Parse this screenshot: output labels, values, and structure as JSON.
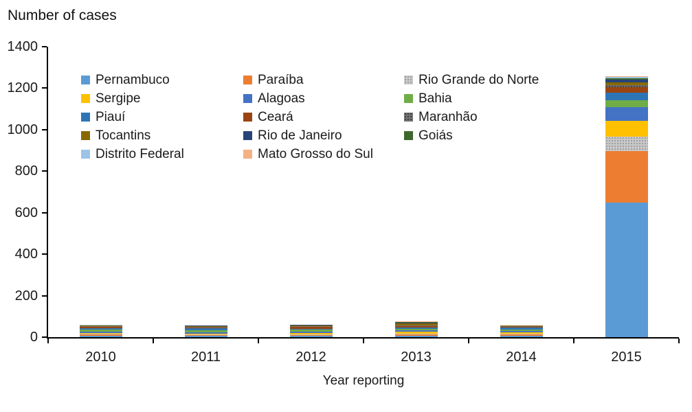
{
  "chart_data": {
    "type": "bar",
    "stacked": true,
    "title": "Number of cases",
    "xlabel": "Year reporting",
    "ylabel": "Number of cases",
    "categories": [
      "2010",
      "2011",
      "2012",
      "2013",
      "2014",
      "2015"
    ],
    "ylim": [
      0,
      1400
    ],
    "yticks": [
      0,
      200,
      400,
      600,
      800,
      1000,
      1200,
      1400
    ],
    "grid": false,
    "legend_position": "inside top-left, 3 columns",
    "axis_color": "#000000",
    "series": [
      {
        "name": "Pernambuco",
        "color": "#5B9BD5",
        "pattern": "solid",
        "values": [
          6,
          5,
          5,
          6,
          7,
          650
        ]
      },
      {
        "name": "Paraíba",
        "color": "#ED7D31",
        "pattern": "solid",
        "values": [
          6,
          4,
          5,
          6,
          5,
          248
        ]
      },
      {
        "name": "Rio Grande do Norte",
        "color": "#C9C9C9",
        "pattern": "dots",
        "dot_color": "#9C9C9C",
        "values": [
          4,
          4,
          4,
          6,
          5,
          70
        ]
      },
      {
        "name": "Sergipe",
        "color": "#FFC000",
        "pattern": "solid",
        "values": [
          5,
          4,
          6,
          7,
          6,
          74
        ]
      },
      {
        "name": "Alagoas",
        "color": "#4472C4",
        "pattern": "solid",
        "values": [
          7,
          6,
          6,
          8,
          7,
          66
        ]
      },
      {
        "name": "Bahia",
        "color": "#70AD47",
        "pattern": "solid",
        "values": [
          8,
          9,
          10,
          8,
          7,
          33
        ]
      },
      {
        "name": "Piauí",
        "color": "#2E75B6",
        "pattern": "solid",
        "values": [
          8,
          12,
          5,
          6,
          8,
          39
        ]
      },
      {
        "name": "Ceará",
        "color": "#9A4511",
        "pattern": "solid",
        "values": [
          5,
          4,
          9,
          5,
          6,
          24
        ]
      },
      {
        "name": "Maranhão",
        "color": "#737373",
        "pattern": "dots",
        "dot_color": "#404040",
        "values": [
          3,
          3,
          4,
          5,
          3,
          10
        ]
      },
      {
        "name": "Tocantins",
        "color": "#8A6800",
        "pattern": "solid",
        "values": [
          3,
          2,
          4,
          9,
          2,
          13
        ]
      },
      {
        "name": "Rio de Janeiro",
        "color": "#264478",
        "pattern": "solid",
        "values": [
          2,
          2,
          1,
          4,
          1,
          13
        ]
      },
      {
        "name": "Goiás",
        "color": "#3E682B",
        "pattern": "solid",
        "values": [
          1,
          1,
          1,
          2,
          1,
          9
        ]
      },
      {
        "name": "Distrito Federal",
        "color": "#9DC3E6",
        "pattern": "solid",
        "values": [
          1,
          1,
          0,
          2,
          0,
          5
        ]
      },
      {
        "name": "Mato Grosso do Sul",
        "color": "#F4B183",
        "pattern": "solid",
        "values": [
          1,
          0,
          0,
          1,
          0,
          5
        ]
      }
    ]
  }
}
